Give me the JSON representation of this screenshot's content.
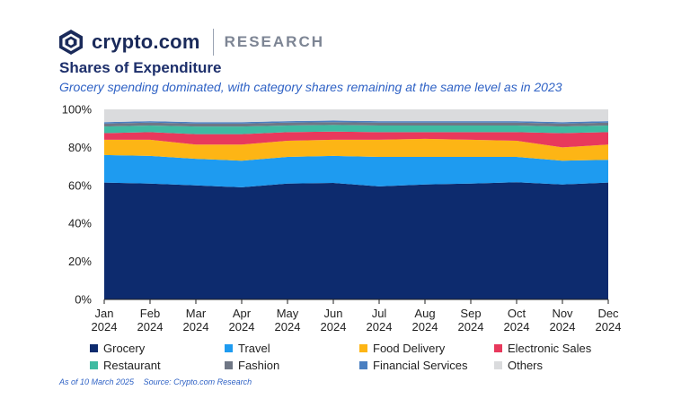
{
  "header": {
    "brand": "crypto.com",
    "section": "RESEARCH",
    "logo_icon": "crypto-com-shield-icon"
  },
  "title": "Shares of Expenditure",
  "subtitle": "Grocery spending dominated, with category shares remaining at the same level as in 2023",
  "footnote": {
    "as_of": "As of 10 March 2025",
    "source": "Source: Crypto.com Research"
  },
  "chart_data": {
    "type": "area",
    "stacked": true,
    "title": "Shares of Expenditure",
    "categories": [
      [
        "Jan",
        "2024"
      ],
      [
        "Feb",
        "2024"
      ],
      [
        "Mar",
        "2024"
      ],
      [
        "Apr",
        "2024"
      ],
      [
        "May",
        "2024"
      ],
      [
        "Jun",
        "2024"
      ],
      [
        "Jul",
        "2024"
      ],
      [
        "Aug",
        "2024"
      ],
      [
        "Sep",
        "2024"
      ],
      [
        "Oct",
        "2024"
      ],
      [
        "Nov",
        "2024"
      ],
      [
        "Dec",
        "2024"
      ]
    ],
    "ylim": [
      0,
      100
    ],
    "yticks": [
      0,
      20,
      40,
      60,
      80,
      100
    ],
    "ytick_labels": [
      "0%",
      "20%",
      "40%",
      "60%",
      "80%",
      "100%"
    ],
    "legend_position": "bottom",
    "series": [
      {
        "name": "Grocery",
        "color": "#0d2b6e",
        "values": [
          61.5,
          61,
          60,
          59,
          61,
          61.3,
          59.5,
          60.5,
          61,
          61.7,
          60.5,
          61.5
        ]
      },
      {
        "name": "Travel",
        "color": "#1e9bf0",
        "values": [
          14.5,
          14.5,
          14,
          14,
          14,
          14.2,
          15.5,
          14.5,
          14,
          13.3,
          12.5,
          12
        ]
      },
      {
        "name": "Food Delivery",
        "color": "#fdb515",
        "values": [
          8,
          8.5,
          7.5,
          8.5,
          8.5,
          8.5,
          9,
          9.5,
          9,
          8.5,
          7,
          8
        ]
      },
      {
        "name": "Electronic Sales",
        "color": "#e8395c",
        "values": [
          3.5,
          4,
          5.5,
          5.5,
          4.5,
          4.3,
          4,
          3.5,
          4,
          4.5,
          7.5,
          6.5
        ]
      },
      {
        "name": "Restaurant",
        "color": "#3fbba2",
        "values": [
          3.5,
          3.5,
          4,
          4,
          3.5,
          3.5,
          3.5,
          3.5,
          3.5,
          3.5,
          3.5,
          3.5
        ]
      },
      {
        "name": "Fashion",
        "color": "#6f7785",
        "values": [
          1.5,
          1.5,
          1.5,
          1.5,
          1.5,
          1.5,
          1.5,
          1.5,
          1.5,
          1.5,
          1.5,
          1.5
        ]
      },
      {
        "name": "Financial Services",
        "color": "#4a7fc1",
        "values": [
          0.8,
          0.8,
          0.8,
          0.8,
          0.8,
          0.8,
          0.8,
          0.8,
          0.8,
          0.8,
          0.8,
          0.8
        ]
      },
      {
        "name": "Others",
        "color": "#dadbdd",
        "values": [
          6.7,
          6.2,
          6.7,
          6.7,
          6.2,
          5.9,
          6.2,
          6.2,
          6.2,
          6.2,
          6.7,
          6.2
        ]
      }
    ]
  }
}
